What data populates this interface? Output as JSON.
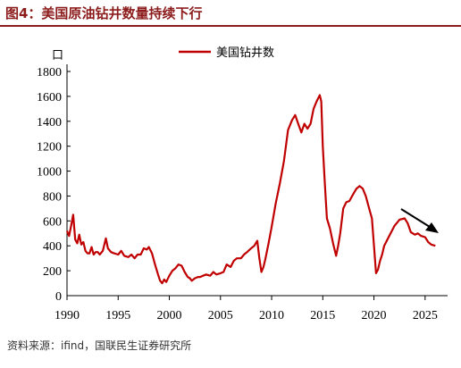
{
  "title": "图4：美国原油钻井数量持续下行",
  "source": "资料来源：ifind，国联民生证券研究所",
  "chart_data": {
    "type": "line",
    "ylabel": "口",
    "ylim": [
      0,
      1800
    ],
    "yticks": [
      0,
      200,
      400,
      600,
      800,
      1000,
      1200,
      1400,
      1600,
      1800
    ],
    "xlim": [
      1990,
      2026.5
    ],
    "xticks": [
      1990,
      1995,
      2000,
      2005,
      2010,
      2015,
      2020,
      2025
    ],
    "legend_position": "top-center",
    "trend_arrow": "down",
    "series": [
      {
        "name": "美国钻井数",
        "color": "#c00000",
        "x": [
          1990.0,
          1990.2,
          1990.4,
          1990.6,
          1990.8,
          1991.0,
          1991.2,
          1991.4,
          1991.6,
          1991.8,
          1992.0,
          1992.2,
          1992.4,
          1992.6,
          1992.8,
          1993.0,
          1993.2,
          1993.5,
          1993.8,
          1994.0,
          1994.3,
          1994.6,
          1995.0,
          1995.3,
          1995.6,
          1996.0,
          1996.3,
          1996.6,
          1996.9,
          1997.2,
          1997.5,
          1997.8,
          1998.0,
          1998.3,
          1998.6,
          1998.9,
          1999.1,
          1999.3,
          1999.5,
          1999.7,
          2000.0,
          2000.3,
          2000.6,
          2000.9,
          2001.2,
          2001.5,
          2001.8,
          2002.0,
          2002.2,
          2002.5,
          2002.8,
          2003.0,
          2003.3,
          2003.6,
          2004.0,
          2004.3,
          2004.6,
          2005.0,
          2005.3,
          2005.6,
          2006.0,
          2006.3,
          2006.6,
          2007.0,
          2007.3,
          2007.6,
          2008.0,
          2008.3,
          2008.6,
          2008.8,
          2009.0,
          2009.2,
          2009.4,
          2009.7,
          2010.0,
          2010.4,
          2010.8,
          2011.2,
          2011.6,
          2012.0,
          2012.3,
          2012.6,
          2012.9,
          2013.2,
          2013.5,
          2013.8,
          2014.1,
          2014.4,
          2014.7,
          2014.85,
          2015.0,
          2015.2,
          2015.4,
          2015.7,
          2016.0,
          2016.3,
          2016.5,
          2016.7,
          2017.0,
          2017.3,
          2017.6,
          2018.0,
          2018.3,
          2018.6,
          2018.9,
          2019.2,
          2019.5,
          2019.8,
          2020.0,
          2020.2,
          2020.4,
          2020.6,
          2020.8,
          2021.0,
          2021.5,
          2022.0,
          2022.5,
          2023.0,
          2023.3,
          2023.6,
          2024.0,
          2024.3,
          2024.6,
          2025.0,
          2025.3,
          2025.6,
          2026.0
        ],
        "values": [
          520,
          480,
          560,
          650,
          450,
          420,
          490,
          410,
          430,
          360,
          340,
          340,
          390,
          330,
          350,
          350,
          330,
          360,
          460,
          380,
          350,
          340,
          330,
          360,
          320,
          310,
          330,
          300,
          330,
          330,
          380,
          370,
          390,
          340,
          250,
          170,
          120,
          100,
          130,
          110,
          160,
          200,
          220,
          250,
          240,
          190,
          150,
          140,
          120,
          140,
          150,
          150,
          160,
          170,
          160,
          190,
          170,
          180,
          190,
          250,
          230,
          280,
          300,
          300,
          330,
          350,
          380,
          400,
          440,
          300,
          190,
          230,
          300,
          420,
          550,
          740,
          900,
          1080,
          1330,
          1410,
          1450,
          1380,
          1310,
          1380,
          1340,
          1380,
          1500,
          1560,
          1610,
          1560,
          1200,
          900,
          620,
          540,
          420,
          320,
          400,
          500,
          700,
          750,
          760,
          820,
          860,
          880,
          860,
          800,
          710,
          620,
          400,
          180,
          210,
          280,
          330,
          400,
          480,
          560,
          610,
          620,
          580,
          510,
          490,
          500,
          480,
          470,
          430,
          410,
          400
        ]
      }
    ]
  }
}
